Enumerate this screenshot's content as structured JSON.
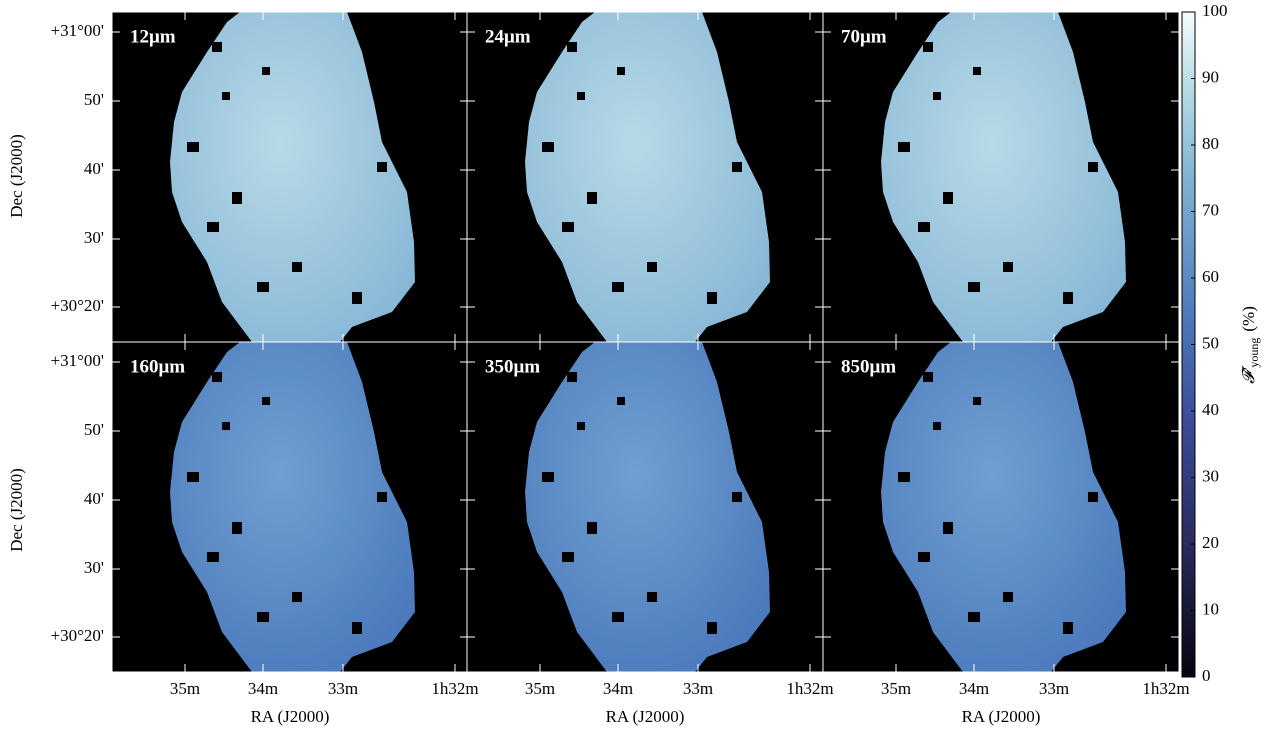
{
  "chart_data": {
    "type": "image-grid",
    "panels": [
      {
        "label": "12μm"
      },
      {
        "label": "24μm"
      },
      {
        "label": "70μm"
      },
      {
        "label": "160μm"
      },
      {
        "label": "350μm"
      },
      {
        "label": "850μm"
      }
    ],
    "ylabel": "Dec (J2000)",
    "xlabel": "RA (J2000)",
    "yticklabels": [
      "+31°00'",
      "50'",
      "40'",
      "30'",
      "+30°20'"
    ],
    "xticklabels": [
      "35m",
      "34m",
      "33m",
      "1h32m"
    ],
    "colorbar": {
      "label": "𝓕′",
      "label_sub": "young",
      "label_unit": "(%)",
      "lim": [
        0,
        100
      ],
      "ticks": [
        0,
        10,
        20,
        30,
        40,
        50,
        60,
        70,
        80,
        90,
        100
      ]
    }
  }
}
